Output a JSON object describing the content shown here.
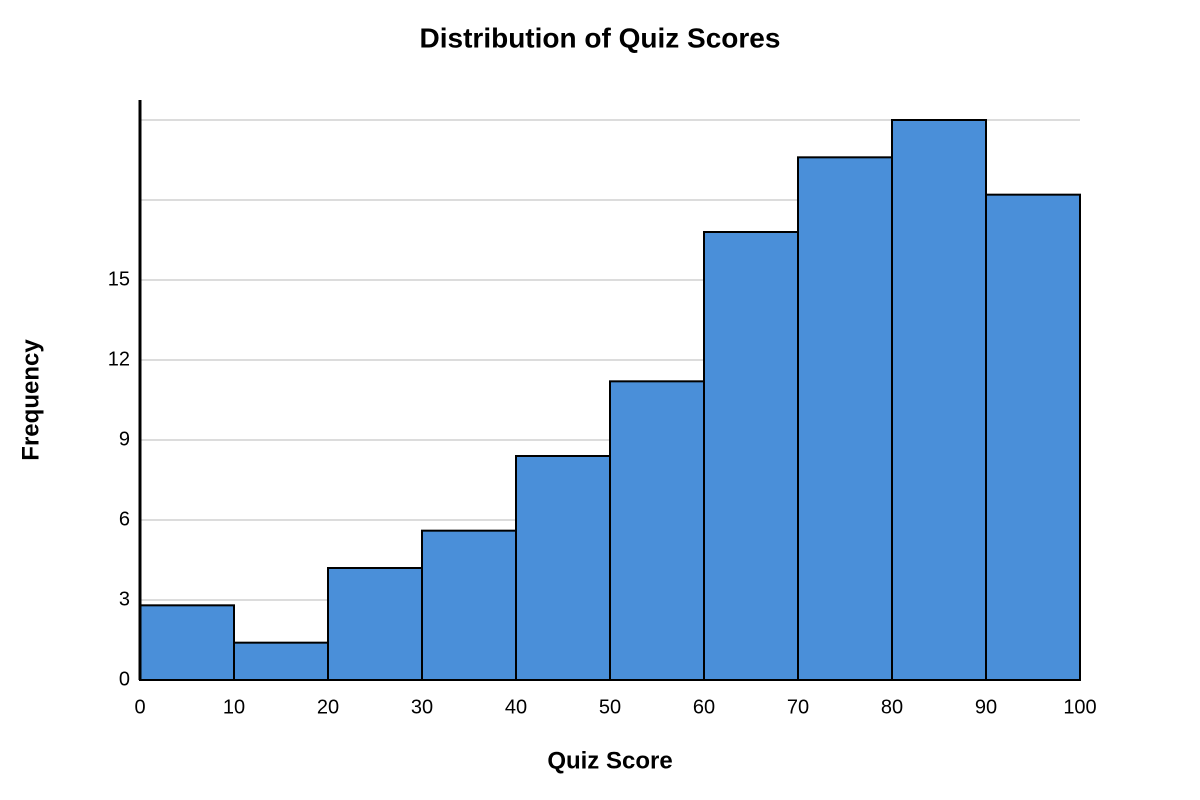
{
  "chart_data": {
    "type": "histogram",
    "title": "Distribution of Quiz Scores",
    "x_label": "Quiz Score",
    "y_label": "Frequency",
    "bins": [
      0,
      10,
      20,
      30,
      40,
      50,
      60,
      70,
      80,
      90,
      100
    ],
    "values": [
      2.8,
      1.4,
      4.2,
      5.6,
      8.4,
      11.2,
      16.8,
      19.6,
      21,
      18.2
    ],
    "color": "#4a8fd9",
    "xlim": [
      0,
      100
    ],
    "xticks": [
      0,
      10,
      20,
      30,
      40,
      50,
      60,
      70,
      80,
      90,
      100
    ],
    "ylim": [
      0,
      21.75
    ],
    "yticks": [
      0,
      3,
      6,
      9,
      12,
      15,
      {
        "value": 18,
        "label": null
      },
      {
        "value": 21,
        "label": null
      }
    ],
    "grid": true
  }
}
